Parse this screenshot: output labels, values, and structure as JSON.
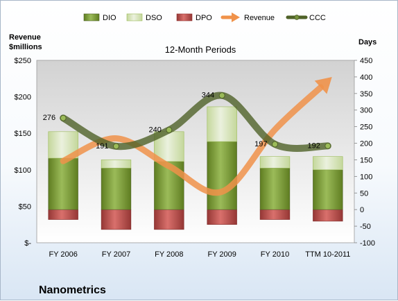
{
  "chart_data": {
    "type": "bar",
    "subtitle": "12-Month Periods",
    "company": "Nanometrics",
    "categories": [
      "FY 2006",
      "FY 2007",
      "FY 2008",
      "FY 2009",
      "FY 2010",
      "TTM 10-2011"
    ],
    "left_axis": {
      "label_line1": "Revenue",
      "label_line2": "$millions",
      "ylim": [
        0,
        250
      ],
      "ticks": [
        0,
        50,
        100,
        150,
        200,
        250
      ],
      "tick_labels": [
        "$-",
        "$50",
        "$100",
        "$150",
        "$200",
        "$250"
      ]
    },
    "right_axis": {
      "label": "Days",
      "ylim": [
        -100,
        450
      ],
      "ticks": [
        -100,
        -50,
        0,
        50,
        100,
        150,
        200,
        250,
        300,
        350,
        400,
        450
      ],
      "tick_labels": [
        "-100",
        "-50",
        "0",
        "50",
        "100",
        "150",
        "200",
        "250",
        "300",
        "350",
        "400",
        "450"
      ]
    },
    "series": [
      {
        "name": "DIO",
        "axis": "right",
        "kind": "stacked-bar",
        "color": "#7a9a32",
        "values": [
          155,
          125,
          145,
          205,
          125,
          120
        ]
      },
      {
        "name": "DSO",
        "axis": "right",
        "kind": "stacked-bar",
        "color": "#d7e6b3",
        "values": [
          80,
          25,
          90,
          105,
          35,
          40
        ]
      },
      {
        "name": "DPO",
        "axis": "right",
        "kind": "negative-bar",
        "color": "#c0504d",
        "values": [
          -30,
          -60,
          -60,
          -45,
          -30,
          -35
        ]
      },
      {
        "name": "Revenue",
        "axis": "left",
        "kind": "arrow-line",
        "color": "#f0924a",
        "values": [
          112,
          143,
          105,
          70,
          155,
          222
        ]
      },
      {
        "name": "CCC",
        "axis": "right",
        "kind": "line",
        "color": "#4f6228",
        "values": [
          276,
          191,
          240,
          344,
          197,
          192
        ]
      }
    ],
    "data_labels": [
      "276",
      "191",
      "240",
      "344",
      "197",
      "192"
    ],
    "grid": false,
    "legend_position": "top"
  }
}
